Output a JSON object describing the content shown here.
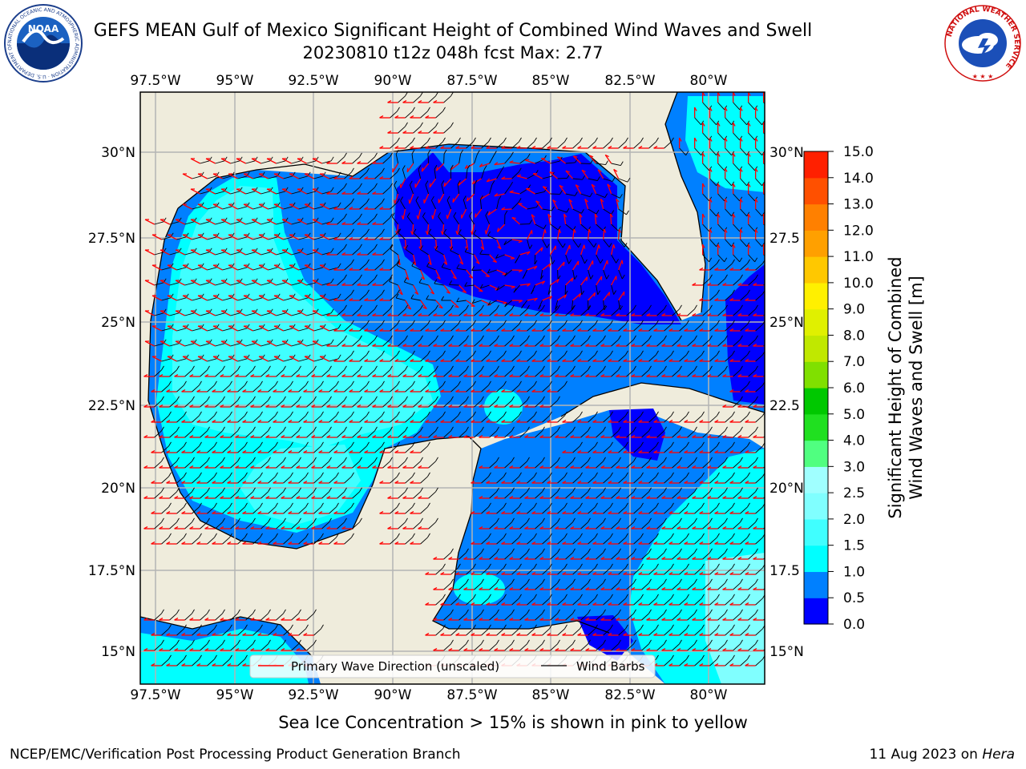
{
  "header": {
    "title_line1": "GEFS MEAN Gulf of Mexico Significant Height of Combined Wind Waves and Swell",
    "title_line2": "20230810 t12z 048h fcst   Max: 2.77"
  },
  "logos": {
    "noaa": {
      "text": "NOAA",
      "ring_text": "NATIONAL OCEANIC AND ATMOSPHERIC ADMINISTRATION · U.S. DEPARTMENT OF COMMERCE"
    },
    "nws": {
      "ring_text": "NATIONAL WEATHER SERVICE"
    }
  },
  "map": {
    "lon_labels": [
      "97.5°W",
      "95°W",
      "92.5°W",
      "90°W",
      "87.5°W",
      "85°W",
      "82.5°W",
      "80°W"
    ],
    "lat_labels_left": [
      "30°N",
      "27.5°N",
      "25°N",
      "22.5°N",
      "20°N",
      "17.5°N",
      "15°N"
    ],
    "lat_labels_right": [
      "30°N",
      "27.5",
      "25°N",
      "22.5",
      "20°N",
      "17.5",
      "15°N"
    ],
    "colors": {
      "land": "#efecdc",
      "grid": "#b4b4b4",
      "arrow": "#ff0000",
      "barb": "#000000"
    },
    "legend": {
      "arrow_label": "Primary Wave Direction (unscaled)",
      "barb_label": "Wind Barbs"
    }
  },
  "colorbar": {
    "label_line1": "Significant Height of Combined",
    "label_line2": "Wind Waves and Swell [m]",
    "ticks": [
      "0.0",
      "0.5",
      "1.0",
      "1.5",
      "2.0",
      "2.5",
      "3.0",
      "4.0",
      "5.0",
      "6.0",
      "7.0",
      "8.0",
      "9.0",
      "10.0",
      "11.0",
      "12.0",
      "13.0",
      "14.0",
      "15.0"
    ],
    "colors": [
      "#0000ff",
      "#0080ff",
      "#00ffff",
      "#40ffff",
      "#80ffff",
      "#a0ffff",
      "#50ff80",
      "#20e020",
      "#00c800",
      "#80e000",
      "#c0e800",
      "#e0f000",
      "#fff000",
      "#ffc800",
      "#ffa000",
      "#ff8000",
      "#ff5000",
      "#ff2000"
    ]
  },
  "footer": {
    "subtitle": "Sea Ice Concentration > 15% is shown in pink to yellow",
    "credit": "NCEP/EMC/Verification Post Processing Product Generation Branch",
    "date": "11 Aug 2023 on",
    "host": "Hera"
  }
}
